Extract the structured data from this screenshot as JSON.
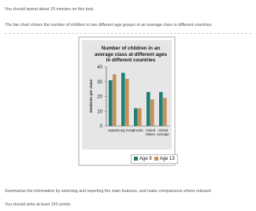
{
  "task": {
    "instruction": "You should spend about 20 minutes on this task.",
    "description": "The bar chart shows the number of children in two different age groups in an average class in different countries.",
    "prompt": "Summarise the information by selecting and reporting the main features, and make comparisons where relevant.",
    "word_limit": "You should write at least 150 words."
  },
  "chart_data": {
    "type": "bar",
    "title": "Number of children in an average class at different ages in different countries",
    "y_label": "Students per class",
    "categories": [
      "Japan",
      "Hong Kong",
      "Russia",
      "United States",
      "Global average"
    ],
    "series": [
      {
        "name": "Age 9",
        "color": "#1f7f72",
        "values": [
          31,
          36,
          12,
          23,
          23
        ]
      },
      {
        "name": "Age 13",
        "color": "#c98f58",
        "values": [
          35,
          32,
          12,
          18,
          19
        ]
      }
    ],
    "ylim": [
      0,
      40
    ],
    "yticks": [
      0,
      10,
      20,
      30,
      40
    ],
    "grid": false,
    "legend": "bottom"
  }
}
